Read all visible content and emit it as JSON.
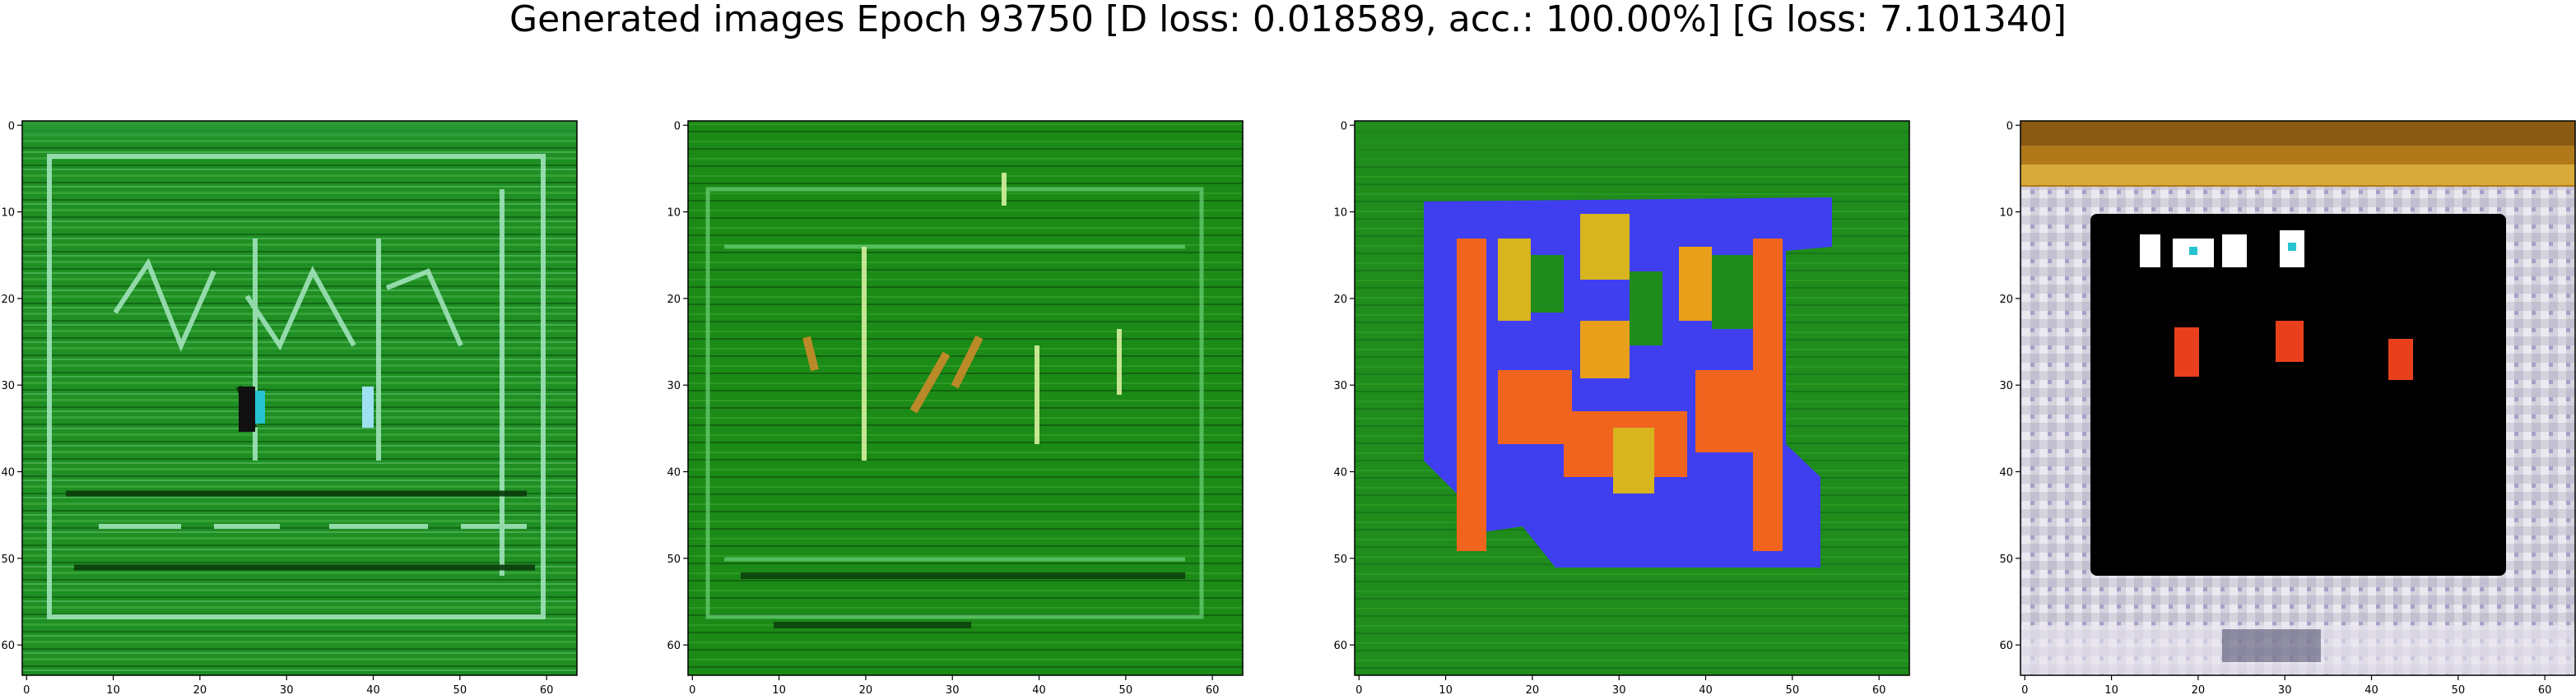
{
  "figure": {
    "suptitle": "Generated images Epoch 93750 [D loss: 0.018589, acc.: 100.00%] [G loss: 7.101340]"
  },
  "chart_data": [
    {
      "type": "heatmap",
      "panel": 1,
      "xlim": [
        -0.5,
        63.5
      ],
      "ylim": [
        63.5,
        -0.5
      ],
      "xticks": [
        0,
        10,
        20,
        30,
        40,
        50,
        60
      ],
      "yticks": [
        0,
        10,
        20,
        30,
        40,
        50,
        60
      ],
      "image_palette": {
        "background": "#1f8f24",
        "light": "#9be0b6",
        "dark": "#0a3a0a",
        "accent": "#27c3d0"
      },
      "content": "64x64 generated image, mostly green with light/dark stripe texture"
    },
    {
      "type": "heatmap",
      "panel": 2,
      "xlim": [
        -0.5,
        63.5
      ],
      "ylim": [
        63.5,
        -0.5
      ],
      "xticks": [
        0,
        10,
        20,
        30,
        40,
        50,
        60
      ],
      "yticks": [
        0,
        10,
        20,
        30,
        40,
        50,
        60
      ],
      "image_palette": {
        "background": "#1c8a16",
        "light": "#c9e08a",
        "dark": "#0b3d0b",
        "accent": "#c48a2a"
      },
      "content": "64x64 generated image, green with faint rectangular frame and orange streaks"
    },
    {
      "type": "heatmap",
      "panel": 3,
      "xlim": [
        -0.5,
        63.5
      ],
      "ylim": [
        63.5,
        -0.5
      ],
      "xticks": [
        0,
        10,
        20,
        30,
        40,
        50,
        60
      ],
      "yticks": [
        0,
        10,
        20,
        30,
        40,
        50,
        60
      ],
      "image_palette": {
        "background": "#1f8c1c",
        "blue": "#3f3ff0",
        "orange": "#f0641e",
        "yellow": "#d8b41e"
      },
      "content": "64x64 generated image, green background with blue blob and orange/yellow vertical bars"
    },
    {
      "type": "heatmap",
      "panel": 4,
      "xlim": [
        -0.5,
        63.5
      ],
      "ylim": [
        63.5,
        -0.5
      ],
      "xticks": [
        0,
        10,
        20,
        30,
        40,
        50,
        60
      ],
      "yticks": [
        0,
        10,
        20,
        30,
        40,
        50,
        60
      ],
      "image_palette": {
        "frame_top": "#b07a1a",
        "frame": "#d8d8e0",
        "screen": "#000000",
        "white": "#ffffff",
        "red": "#e8401c"
      },
      "content": "64x64 generated image, light frame with orange top band, black center, white shapes on top row and three red shapes below"
    }
  ]
}
